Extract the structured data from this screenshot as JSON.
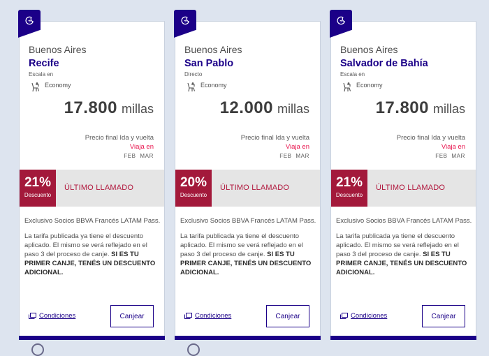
{
  "cards": [
    {
      "origin": "Buenos Aires",
      "destination": "Recife",
      "stop": "Escala en",
      "cabin": "Economy",
      "price": "17.800",
      "unit": "millas",
      "price_note": "Precio final Ida y vuelta",
      "travel_label": "Viaja en",
      "months": "FEB MAR",
      "discount_pct": "21%",
      "discount_label": "Descuento",
      "promo_label": "ÚLTIMO LLAMADO",
      "exclusive": "Exclusivo Socios BBVA Francés LATAM Pass.",
      "terms": "La tarifa publicada ya tiene el descuento aplicado. El mismo se verá reflejado en el paso 3 del proceso de canje.",
      "terms_bold": "SI ES TU PRIMER CANJE, TENÉS UN DESCUENTO ADICIONAL.",
      "conditions_label": "Condiciones",
      "redeem_label": "Canjear"
    },
    {
      "origin": "Buenos Aires",
      "destination": "San Pablo",
      "stop": "Directo",
      "cabin": "Economy",
      "price": "12.000",
      "unit": "millas",
      "price_note": "Precio final Ida y vuelta",
      "travel_label": "Viaja en",
      "months": "FEB MAR",
      "discount_pct": "20%",
      "discount_label": "Descuento",
      "promo_label": "ÚLTIMO LLAMADO",
      "exclusive": "Exclusivo Socios BBVA Francés LATAM Pass.",
      "terms": "La tarifa publicada ya tiene el descuento aplicado. El mismo se verá reflejado en el paso 3 del proceso de canje.",
      "terms_bold": "SI ES TU PRIMER CANJE, TENÉS UN DESCUENTO ADICIONAL.",
      "conditions_label": "Condiciones",
      "redeem_label": "Canjear"
    },
    {
      "origin": "Buenos Aires",
      "destination": "Salvador de Bahía",
      "stop": "Escala en",
      "cabin": "Economy",
      "price": "17.800",
      "unit": "millas",
      "price_note": "Precio final Ida y vuelta",
      "travel_label": "Viaja en",
      "months": "FEB MAR",
      "discount_pct": "21%",
      "discount_label": "Descuento",
      "promo_label": "ÚLTIMO LLAMADO",
      "exclusive": "Exclusivo Socios BBVA Francés LATAM Pass.",
      "terms": "La tarifa publicada ya tiene el descuento aplicado. El mismo se verá reflejado en el paso 3 del proceso de canje.",
      "terms_bold": "SI ES TU PRIMER CANJE, TENÉS UN DESCUENTO ADICIONAL.",
      "conditions_label": "Condiciones",
      "redeem_label": "Canjear"
    }
  ],
  "icons": {
    "badge": "plane-moon-icon",
    "seat": "seat-icon",
    "conditions": "window-icon"
  },
  "colors": {
    "brand": "#1b0088",
    "discount": "#a3193b",
    "accent_pink": "#e8114b"
  }
}
